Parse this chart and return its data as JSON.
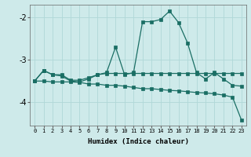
{
  "xlabel": "Humidex (Indice chaleur)",
  "bg_color": "#ceeaea",
  "grid_color": "#b0d8d8",
  "line_color": "#1a6e64",
  "x_hours": [
    0,
    1,
    2,
    3,
    4,
    5,
    6,
    7,
    8,
    9,
    10,
    11,
    12,
    13,
    14,
    15,
    16,
    17,
    18,
    19,
    20,
    21,
    22,
    23
  ],
  "series1": [
    -3.5,
    -3.25,
    -3.35,
    -3.38,
    -3.5,
    -3.52,
    -3.45,
    -3.35,
    -3.3,
    -2.7,
    -3.35,
    -3.3,
    -2.1,
    -2.1,
    -2.05,
    -1.85,
    -2.12,
    -2.6,
    -3.3,
    -3.45,
    -3.3,
    -3.45,
    -3.6,
    -3.62
  ],
  "series2": [
    -3.5,
    -3.25,
    -3.35,
    -3.35,
    -3.48,
    -3.48,
    -3.42,
    -3.35,
    -3.32,
    -3.32,
    -3.32,
    -3.32,
    -3.32,
    -3.32,
    -3.32,
    -3.32,
    -3.32,
    -3.32,
    -3.32,
    -3.32,
    -3.32,
    -3.32,
    -3.32,
    -3.32
  ],
  "series3": [
    -3.5,
    -3.5,
    -3.52,
    -3.52,
    -3.52,
    -3.53,
    -3.57,
    -3.57,
    -3.6,
    -3.6,
    -3.62,
    -3.65,
    -3.68,
    -3.68,
    -3.7,
    -3.72,
    -3.73,
    -3.75,
    -3.77,
    -3.78,
    -3.8,
    -3.83,
    -3.88,
    -4.42
  ],
  "ylim": [
    -4.55,
    -1.7
  ],
  "yticks": [
    -4,
    -3,
    -2
  ],
  "figsize": [
    3.2,
    2.0
  ],
  "dpi": 100
}
